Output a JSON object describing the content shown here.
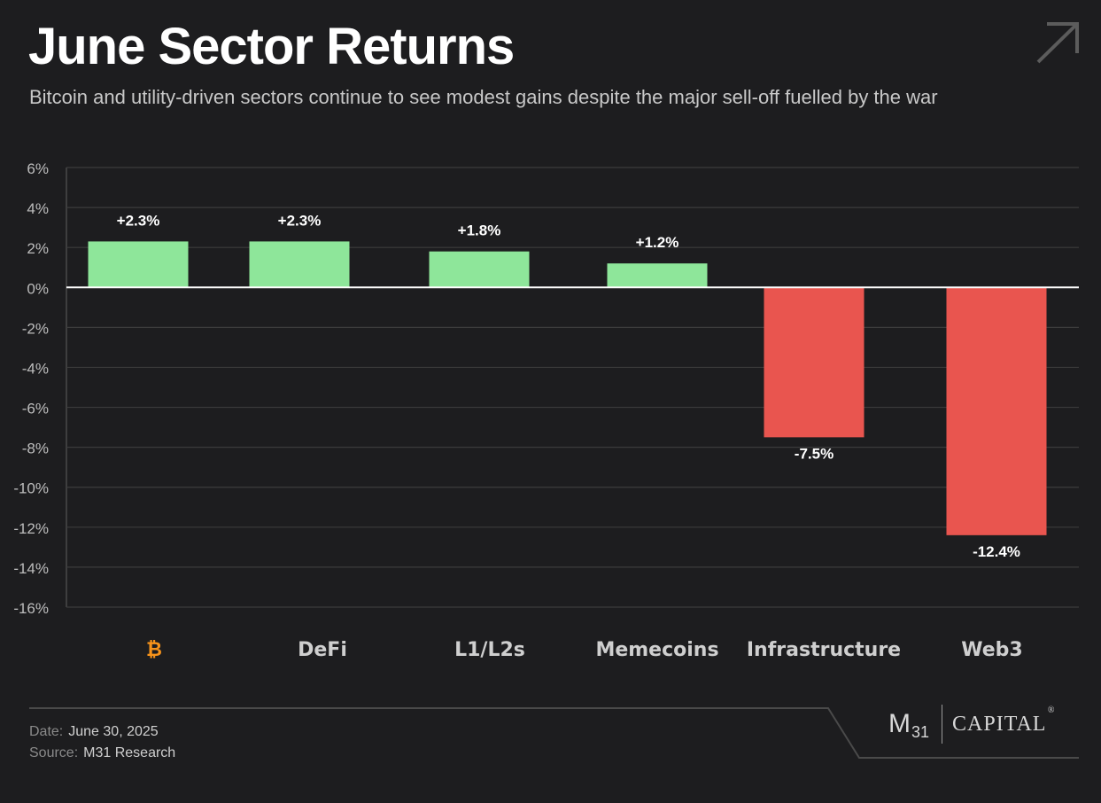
{
  "header": {
    "title": "June Sector Returns",
    "subtitle": "Bitcoin and utility-driven sectors continue to see modest gains despite the major sell-off fuelled by the war"
  },
  "chart_data": {
    "type": "bar",
    "categories": [
      "₿",
      "DeFi",
      "L1/L2s",
      "Memecoins",
      "Infrastructure",
      "Web3"
    ],
    "values": [
      2.3,
      2.3,
      1.8,
      1.2,
      -7.5,
      -12.4
    ],
    "data_labels": [
      "+2.3%",
      "+2.3%",
      "+1.8%",
      "+1.2%",
      "-7.5%",
      "-12.4%"
    ],
    "ylim": [
      -16,
      6
    ],
    "yticks": [
      6,
      4,
      2,
      0,
      -2,
      -4,
      -6,
      -8,
      -10,
      -12,
      -14,
      -16
    ],
    "ytick_labels": [
      "6%",
      "4%",
      "2%",
      "0%",
      "-2%",
      "-4%",
      "-6%",
      "-8%",
      "-10%",
      "-12%",
      "-14%",
      "-16%"
    ],
    "grid": true,
    "colors": {
      "positive": "#8ee69a",
      "negative": "#e9554f",
      "bitcoin_label": "#f7931a"
    }
  },
  "footer": {
    "date_label": "Date:",
    "date_value": "June 30, 2025",
    "source_label": "Source:",
    "source_value": "M31 Research"
  },
  "logo": {
    "m": "M",
    "sub": "31",
    "capital": "CAPITAL",
    "reg": "®"
  }
}
